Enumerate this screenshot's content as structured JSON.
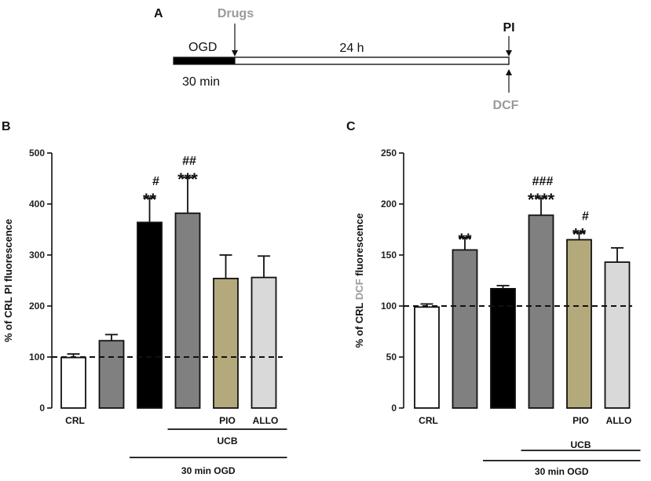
{
  "panel_a": {
    "letter": "A",
    "ogd_label": "OGD",
    "drugs_label": "Drugs",
    "duration_label": "24 h",
    "pi_label": "PI",
    "ogd_time_label": "30 min",
    "dcf_label": "DCF",
    "colors": {
      "drugs": "#9a9a9a",
      "dcf": "#9a9a9a",
      "ogd_bar": "#000000"
    }
  },
  "chart_data": [
    {
      "id": "B",
      "type": "bar",
      "letter": "B",
      "ylabel_parts": [
        {
          "text": "% of CRL ",
          "color": "#111111"
        },
        {
          "text": "PI",
          "color": "#111111"
        },
        {
          "text": " fluorescence",
          "color": "#111111"
        }
      ],
      "ylim": [
        0,
        500
      ],
      "yticks": [
        0,
        100,
        200,
        300,
        400,
        500
      ],
      "reference_line": 100,
      "categories": [
        "CRL",
        "",
        "",
        "",
        "PIO",
        "ALLO"
      ],
      "values": [
        99,
        132,
        364,
        382,
        254,
        256
      ],
      "errors": [
        7,
        12,
        48,
        70,
        46,
        42
      ],
      "colors": [
        "#ffffff",
        "#808080",
        "#000000",
        "#808080",
        "#b4a97a",
        "#d9d9d9"
      ],
      "stars": [
        "",
        "",
        "**",
        "***",
        "",
        ""
      ],
      "hashes": [
        "",
        "",
        "#",
        "##",
        "",
        ""
      ],
      "groups": [
        {
          "label": "UCB",
          "from": 3,
          "to": 5
        },
        {
          "label": "30 min OGD",
          "from": 2,
          "to": 5
        }
      ]
    },
    {
      "id": "C",
      "type": "bar",
      "letter": "C",
      "ylabel_parts": [
        {
          "text": "% of CRL ",
          "color": "#111111"
        },
        {
          "text": "DCF",
          "color": "#9a9a9a"
        },
        {
          "text": " fluorescence",
          "color": "#111111"
        }
      ],
      "ylim": [
        0,
        250
      ],
      "yticks": [
        0,
        50,
        100,
        150,
        200,
        250
      ],
      "reference_line": 100,
      "categories": [
        "CRL",
        "",
        "",
        "",
        "PIO",
        "ALLO"
      ],
      "values": [
        99,
        155,
        117,
        189,
        165,
        143
      ],
      "errors": [
        3,
        12,
        3,
        17,
        7,
        14
      ],
      "colors": [
        "#ffffff",
        "#808080",
        "#000000",
        "#808080",
        "#b4a97a",
        "#d9d9d9"
      ],
      "stars": [
        "",
        "**",
        "",
        "****",
        "**",
        ""
      ],
      "hashes": [
        "",
        "",
        "",
        "###",
        "#",
        ""
      ],
      "groups": [
        {
          "label": "UCB",
          "from": 3,
          "to": 5
        },
        {
          "label": "30 min OGD",
          "from": 2,
          "to": 5
        }
      ]
    }
  ]
}
